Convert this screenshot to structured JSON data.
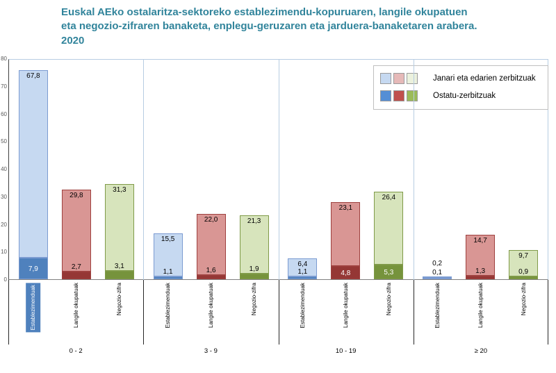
{
  "title": "Euskal AEko ostalaritza-sektoreko establezimendu-kopuruaren, langile okupatuen eta negozio-zifraren banaketa, enplegu-geruzaren eta jarduera-banaketaren arabera. 2020",
  "title_color": "#31849b",
  "legend": {
    "items": [
      {
        "label": "Janari eta edarien zerbitzuak",
        "swatches": [
          "#c6d9f1",
          "#e6b9b8",
          "#ebf1dd"
        ]
      },
      {
        "label": "Ostatu-zerbitzuak",
        "swatches": [
          "#558ed5",
          "#c0504d",
          "#9bbb59"
        ]
      }
    ]
  },
  "chart_data": {
    "type": "bar",
    "subtype": "grouped-stacked",
    "title": "Euskal AEko ostalaritza-sektoreko establezimendu-kopuruaren, langile okupatuen eta negozio-zifraren banaketa, enplegu-geruzaren eta jarduera-banaketaren arabera. 2020",
    "ylim": [
      0,
      80
    ],
    "yticks": [
      0,
      10,
      20,
      30,
      40,
      50,
      60,
      70,
      80
    ],
    "grid": false,
    "legend_position": "top-right",
    "bar_series": [
      "Establezimenduak",
      "Langile okupatuak",
      "Negozio-zifra"
    ],
    "stack_series": [
      {
        "name": "Janari eta edarien zerbitzuak",
        "tone": "light"
      },
      {
        "name": "Ostatu-zerbitzuak",
        "tone": "dark"
      }
    ],
    "bar_colors": {
      "light": [
        "#c6d9f1",
        "#d99694",
        "#d7e4bc"
      ],
      "dark": [
        "#4f81bd",
        "#953735",
        "#76933c"
      ],
      "border": [
        "#7b9bd1",
        "#9e403e",
        "#7f9a48"
      ]
    },
    "groups": [
      {
        "label": "0 - 2",
        "janari": [
          67.8,
          29.8,
          31.3
        ],
        "ostatu": [
          7.9,
          2.7,
          3.1
        ]
      },
      {
        "label": "3 - 9",
        "janari": [
          15.5,
          22.0,
          21.3
        ],
        "ostatu": [
          1.1,
          1.6,
          1.9
        ]
      },
      {
        "label": "10 - 19",
        "janari": [
          6.4,
          23.1,
          26.4
        ],
        "ostatu": [
          1.1,
          4.8,
          5.3
        ]
      },
      {
        "label": "≥ 20",
        "janari": [
          0.2,
          14.7,
          9.7
        ],
        "ostatu": [
          0.1,
          1.3,
          0.9
        ]
      }
    ],
    "highlighted_label": {
      "group": 0,
      "bar": 0,
      "bg": "#4f81bd",
      "fg": "#ffffff"
    }
  },
  "colors": {
    "separator": "#b7cde2",
    "axis_divider": "#262626",
    "tick_text": "#595959"
  }
}
